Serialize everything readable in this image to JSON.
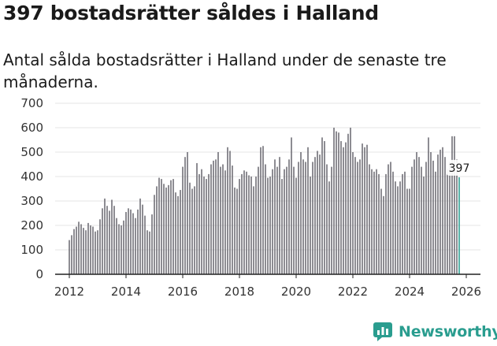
{
  "header": {
    "title": "397 bostadsrätter såldes i Halland",
    "subtitle": "Antal sålda bostadsrätter i Halland under de senaste tre månaderna."
  },
  "brand": {
    "name": "Newsworthy",
    "color": "#2a9d8f"
  },
  "colors": {
    "bar": "#6d6c73",
    "highlight": "#2a9d8f",
    "axis": "#222222",
    "grid": "#e6e6e6"
  },
  "chart_data": {
    "type": "bar",
    "title": "397 bostadsrätter såldes i Halland",
    "subtitle": "Antal sålda bostadsrätter i Halland under de senaste tre månaderna.",
    "xlabel": "",
    "ylabel": "",
    "ylim": [
      0,
      700
    ],
    "yticks": [
      0,
      100,
      200,
      300,
      400,
      500,
      600,
      700
    ],
    "xlim": [
      2011.5,
      2026.5
    ],
    "xticks": [
      2012,
      2014,
      2016,
      2018,
      2020,
      2022,
      2024,
      2026
    ],
    "start_year": 2012,
    "start_month": 1,
    "bars_per_year": 12,
    "grid": "horizontal",
    "highlight": {
      "label": "397",
      "value": 397,
      "index": 165
    },
    "values": [
      140,
      160,
      185,
      195,
      215,
      205,
      190,
      180,
      210,
      200,
      195,
      175,
      180,
      225,
      270,
      310,
      280,
      260,
      305,
      280,
      230,
      205,
      200,
      220,
      255,
      270,
      265,
      250,
      230,
      265,
      310,
      285,
      240,
      180,
      175,
      245,
      325,
      360,
      395,
      390,
      370,
      355,
      365,
      385,
      390,
      335,
      320,
      345,
      440,
      480,
      500,
      375,
      350,
      360,
      455,
      410,
      430,
      400,
      390,
      410,
      450,
      465,
      470,
      500,
      440,
      450,
      425,
      520,
      505,
      445,
      355,
      350,
      390,
      410,
      425,
      420,
      405,
      400,
      360,
      400,
      440,
      520,
      525,
      450,
      395,
      400,
      430,
      470,
      440,
      480,
      390,
      430,
      440,
      470,
      560,
      440,
      395,
      460,
      500,
      470,
      460,
      520,
      400,
      460,
      480,
      505,
      490,
      560,
      545,
      450,
      380,
      440,
      600,
      585,
      580,
      545,
      520,
      540,
      575,
      600,
      500,
      480,
      460,
      470,
      535,
      520,
      530,
      450,
      430,
      420,
      430,
      410,
      350,
      320,
      410,
      450,
      460,
      420,
      380,
      360,
      380,
      410,
      420,
      350,
      350,
      440,
      470,
      500,
      480,
      440,
      400,
      460,
      560,
      500,
      465,
      420,
      490,
      510,
      520,
      480,
      430,
      460,
      565,
      565,
      470,
      397
    ]
  }
}
